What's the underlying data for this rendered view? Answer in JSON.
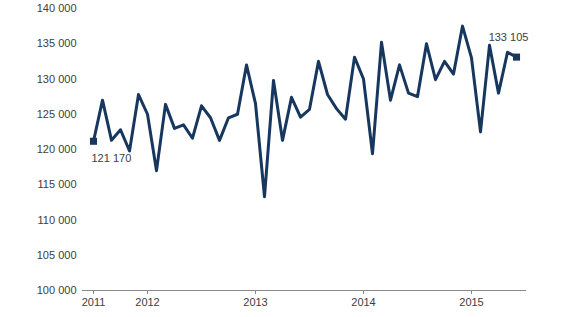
{
  "chart_data": {
    "type": "line",
    "categories": [
      "2011",
      null,
      null,
      null,
      null,
      null,
      "2012",
      null,
      null,
      null,
      null,
      null,
      null,
      null,
      null,
      null,
      null,
      null,
      "2013",
      null,
      null,
      null,
      null,
      null,
      null,
      null,
      null,
      null,
      null,
      null,
      "2014",
      null,
      null,
      null,
      null,
      null,
      null,
      null,
      null,
      null,
      null,
      null,
      "2015",
      null,
      null,
      null,
      null,
      null
    ],
    "values": [
      121170,
      127000,
      121300,
      122800,
      119800,
      127800,
      125000,
      117000,
      126400,
      123000,
      123500,
      121600,
      126200,
      124500,
      121300,
      124500,
      125000,
      132000,
      126500,
      113300,
      129800,
      121300,
      127400,
      124600,
      125700,
      132500,
      127800,
      125800,
      124300,
      133100,
      130000,
      119400,
      135200,
      127000,
      132000,
      128000,
      127500,
      135000,
      129900,
      132500,
      130700,
      137500,
      133000,
      122500,
      134800,
      128000,
      133800,
      133105
    ],
    "value_labels": [
      "121 170",
      null,
      null,
      null,
      null,
      null,
      null,
      null,
      null,
      null,
      null,
      null,
      null,
      null,
      null,
      null,
      null,
      null,
      null,
      null,
      null,
      null,
      null,
      null,
      null,
      null,
      null,
      null,
      null,
      null,
      null,
      null,
      null,
      null,
      null,
      null,
      null,
      null,
      null,
      null,
      null,
      null,
      null,
      null,
      null,
      null,
      null,
      "133 105"
    ],
    "color": "#17375e",
    "ylim": [
      100000,
      140000
    ],
    "yticks": [
      {
        "value": 100000,
        "label": "100 000"
      },
      {
        "value": 105000,
        "label": "105 000"
      },
      {
        "value": 110000,
        "label": "110 000"
      },
      {
        "value": 115000,
        "label": "115 000"
      },
      {
        "value": 120000,
        "label": "120 000"
      },
      {
        "value": 125000,
        "label": "125 000"
      },
      {
        "value": 130000,
        "label": "130 000"
      },
      {
        "value": 135000,
        "label": "135 000"
      },
      {
        "value": 140000,
        "label": "140 000"
      }
    ],
    "grid": false
  }
}
